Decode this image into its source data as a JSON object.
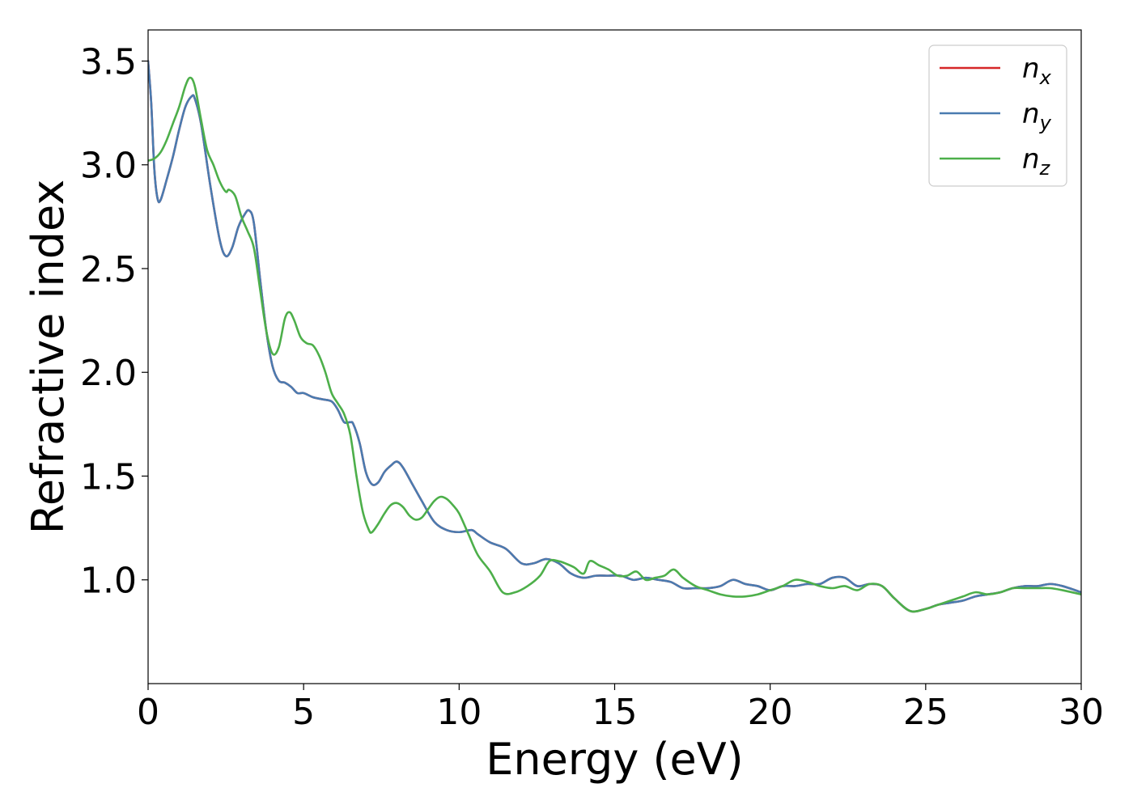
{
  "chart_data": {
    "type": "line",
    "title": "",
    "xlabel": "Energy (eV)",
    "ylabel": "Refractive index",
    "xlim": [
      0,
      30
    ],
    "ylim": [
      0.5,
      3.65
    ],
    "xticks": [
      0,
      5,
      10,
      15,
      20,
      25,
      30
    ],
    "xtick_labels": [
      "0",
      "5",
      "10",
      "15",
      "20",
      "25",
      "30"
    ],
    "yticks": [
      1.0,
      1.5,
      2.0,
      2.5,
      3.0,
      3.5
    ],
    "ytick_labels": [
      "1.0",
      "1.5",
      "2.0",
      "2.5",
      "3.0",
      "3.5"
    ],
    "grid": false,
    "legend_position": "top-right",
    "series": [
      {
        "name": "n",
        "subscript": "x",
        "color": "#d62728",
        "x": [
          0,
          0.1,
          0.2,
          0.3,
          0.4,
          0.6,
          0.8,
          1.0,
          1.2,
          1.4,
          1.5,
          1.7,
          2.0,
          2.3,
          2.5,
          2.7,
          2.9,
          3.1,
          3.25,
          3.4,
          3.6,
          3.8,
          4.0,
          4.2,
          4.4,
          4.6,
          4.8,
          5.0,
          5.3,
          5.6,
          5.9,
          6.1,
          6.3,
          6.5,
          6.6,
          6.8,
          7.0,
          7.2,
          7.4,
          7.6,
          7.8,
          8.0,
          8.2,
          8.5,
          8.8,
          9.2,
          9.6,
          10.0,
          10.4,
          10.6,
          11.0,
          11.5,
          12.0,
          12.4,
          12.8,
          13.2,
          13.6,
          14.0,
          14.4,
          14.8,
          15.2,
          15.6,
          16.0,
          16.4,
          16.8,
          17.2,
          17.6,
          18.0,
          18.4,
          18.8,
          19.2,
          19.6,
          20.0,
          20.4,
          20.8,
          21.2,
          21.6,
          22.0,
          22.4,
          22.8,
          23.2,
          23.6,
          24.0,
          24.5,
          25.0,
          25.4,
          25.8,
          26.2,
          26.6,
          27.0,
          27.4,
          27.8,
          28.2,
          28.6,
          29.0,
          29.4,
          30.0
        ],
        "y": [
          3.5,
          3.3,
          2.98,
          2.84,
          2.83,
          2.93,
          3.04,
          3.17,
          3.28,
          3.33,
          3.32,
          3.2,
          2.9,
          2.64,
          2.56,
          2.6,
          2.7,
          2.76,
          2.78,
          2.72,
          2.45,
          2.2,
          2.03,
          1.96,
          1.95,
          1.93,
          1.9,
          1.9,
          1.88,
          1.87,
          1.86,
          1.82,
          1.76,
          1.76,
          1.75,
          1.66,
          1.52,
          1.46,
          1.47,
          1.52,
          1.55,
          1.57,
          1.54,
          1.46,
          1.38,
          1.28,
          1.24,
          1.23,
          1.24,
          1.22,
          1.18,
          1.15,
          1.08,
          1.08,
          1.1,
          1.08,
          1.03,
          1.01,
          1.02,
          1.02,
          1.02,
          1.0,
          1.01,
          1.0,
          0.99,
          0.96,
          0.96,
          0.96,
          0.97,
          1.0,
          0.98,
          0.97,
          0.95,
          0.97,
          0.97,
          0.98,
          0.98,
          1.01,
          1.01,
          0.97,
          0.98,
          0.97,
          0.91,
          0.85,
          0.86,
          0.88,
          0.89,
          0.9,
          0.92,
          0.93,
          0.94,
          0.96,
          0.97,
          0.97,
          0.98,
          0.97,
          0.94
        ]
      },
      {
        "name": "n",
        "subscript": "y",
        "color": "#4a7bb0",
        "x": [
          0,
          0.1,
          0.2,
          0.3,
          0.4,
          0.6,
          0.8,
          1.0,
          1.2,
          1.4,
          1.5,
          1.7,
          2.0,
          2.3,
          2.5,
          2.7,
          2.9,
          3.1,
          3.25,
          3.4,
          3.6,
          3.8,
          4.0,
          4.2,
          4.4,
          4.6,
          4.8,
          5.0,
          5.3,
          5.6,
          5.9,
          6.1,
          6.3,
          6.5,
          6.6,
          6.8,
          7.0,
          7.2,
          7.4,
          7.6,
          7.8,
          8.0,
          8.2,
          8.5,
          8.8,
          9.2,
          9.6,
          10.0,
          10.4,
          10.6,
          11.0,
          11.5,
          12.0,
          12.4,
          12.8,
          13.2,
          13.6,
          14.0,
          14.4,
          14.8,
          15.2,
          15.6,
          16.0,
          16.4,
          16.8,
          17.2,
          17.6,
          18.0,
          18.4,
          18.8,
          19.2,
          19.6,
          20.0,
          20.4,
          20.8,
          21.2,
          21.6,
          22.0,
          22.4,
          22.8,
          23.2,
          23.6,
          24.0,
          24.5,
          25.0,
          25.4,
          25.8,
          26.2,
          26.6,
          27.0,
          27.4,
          27.8,
          28.2,
          28.6,
          29.0,
          29.4,
          30.0
        ],
        "y": [
          3.5,
          3.3,
          2.98,
          2.84,
          2.83,
          2.93,
          3.04,
          3.17,
          3.28,
          3.33,
          3.32,
          3.2,
          2.9,
          2.64,
          2.56,
          2.6,
          2.7,
          2.76,
          2.78,
          2.72,
          2.45,
          2.2,
          2.03,
          1.96,
          1.95,
          1.93,
          1.9,
          1.9,
          1.88,
          1.87,
          1.86,
          1.82,
          1.76,
          1.76,
          1.75,
          1.66,
          1.52,
          1.46,
          1.47,
          1.52,
          1.55,
          1.57,
          1.54,
          1.46,
          1.38,
          1.28,
          1.24,
          1.23,
          1.24,
          1.22,
          1.18,
          1.15,
          1.08,
          1.08,
          1.1,
          1.08,
          1.03,
          1.01,
          1.02,
          1.02,
          1.02,
          1.0,
          1.01,
          1.0,
          0.99,
          0.96,
          0.96,
          0.96,
          0.97,
          1.0,
          0.98,
          0.97,
          0.95,
          0.97,
          0.97,
          0.98,
          0.98,
          1.01,
          1.01,
          0.97,
          0.98,
          0.97,
          0.91,
          0.85,
          0.86,
          0.88,
          0.89,
          0.9,
          0.92,
          0.93,
          0.94,
          0.96,
          0.97,
          0.97,
          0.98,
          0.97,
          0.94
        ]
      },
      {
        "name": "n",
        "subscript": "z",
        "color": "#4daf4a",
        "x": [
          0,
          0.2,
          0.4,
          0.6,
          0.8,
          1.0,
          1.2,
          1.35,
          1.5,
          1.7,
          1.9,
          2.1,
          2.3,
          2.5,
          2.6,
          2.8,
          3.0,
          3.2,
          3.4,
          3.6,
          3.8,
          4.0,
          4.2,
          4.4,
          4.55,
          4.7,
          4.9,
          5.1,
          5.3,
          5.5,
          5.7,
          5.9,
          6.1,
          6.3,
          6.5,
          6.7,
          6.9,
          7.1,
          7.2,
          7.4,
          7.6,
          7.8,
          8.0,
          8.2,
          8.4,
          8.6,
          8.8,
          9.0,
          9.2,
          9.4,
          9.6,
          9.8,
          10.0,
          10.3,
          10.6,
          11.0,
          11.4,
          11.8,
          12.2,
          12.6,
          12.9,
          13.2,
          13.4,
          13.7,
          14.0,
          14.2,
          14.5,
          14.8,
          15.1,
          15.4,
          15.7,
          16.0,
          16.3,
          16.6,
          16.9,
          17.2,
          17.6,
          18.0,
          18.4,
          18.8,
          19.2,
          19.6,
          20.0,
          20.4,
          20.8,
          21.2,
          21.6,
          22.0,
          22.4,
          22.8,
          23.2,
          23.6,
          24.0,
          24.5,
          25.0,
          25.4,
          25.8,
          26.2,
          26.6,
          27.0,
          27.4,
          27.8,
          28.2,
          28.6,
          29.0,
          29.4,
          30.0
        ],
        "y": [
          3.02,
          3.03,
          3.06,
          3.12,
          3.2,
          3.28,
          3.38,
          3.42,
          3.38,
          3.22,
          3.07,
          3.0,
          2.92,
          2.87,
          2.88,
          2.85,
          2.75,
          2.68,
          2.6,
          2.4,
          2.2,
          2.09,
          2.12,
          2.26,
          2.29,
          2.25,
          2.17,
          2.14,
          2.13,
          2.08,
          2.0,
          1.9,
          1.85,
          1.8,
          1.7,
          1.5,
          1.33,
          1.24,
          1.23,
          1.27,
          1.32,
          1.36,
          1.37,
          1.35,
          1.31,
          1.29,
          1.3,
          1.34,
          1.38,
          1.4,
          1.39,
          1.36,
          1.32,
          1.22,
          1.12,
          1.04,
          0.94,
          0.94,
          0.97,
          1.02,
          1.09,
          1.09,
          1.08,
          1.06,
          1.03,
          1.09,
          1.07,
          1.05,
          1.02,
          1.02,
          1.04,
          1.0,
          1.01,
          1.02,
          1.05,
          1.01,
          0.97,
          0.95,
          0.93,
          0.92,
          0.92,
          0.93,
          0.95,
          0.97,
          1.0,
          0.99,
          0.97,
          0.96,
          0.97,
          0.95,
          0.98,
          0.97,
          0.91,
          0.85,
          0.86,
          0.88,
          0.9,
          0.92,
          0.94,
          0.93,
          0.94,
          0.96,
          0.96,
          0.96,
          0.96,
          0.95,
          0.93
        ]
      }
    ]
  }
}
